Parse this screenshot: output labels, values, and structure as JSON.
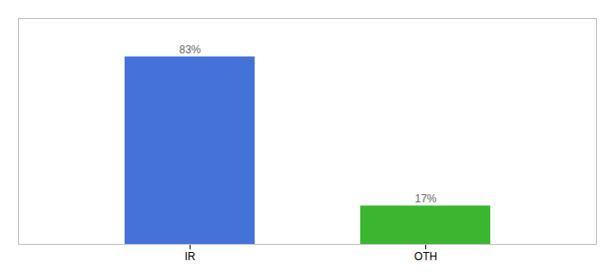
{
  "chart_data": {
    "type": "bar",
    "categories": [
      "IR",
      "OTH"
    ],
    "values": [
      83,
      17
    ],
    "colors": [
      "#4472d9",
      "#3cb531"
    ],
    "value_labels": [
      "83%",
      "17%"
    ],
    "data_labels": true,
    "ylim": [
      0,
      100
    ],
    "grid": false,
    "tick_labels": "x"
  }
}
